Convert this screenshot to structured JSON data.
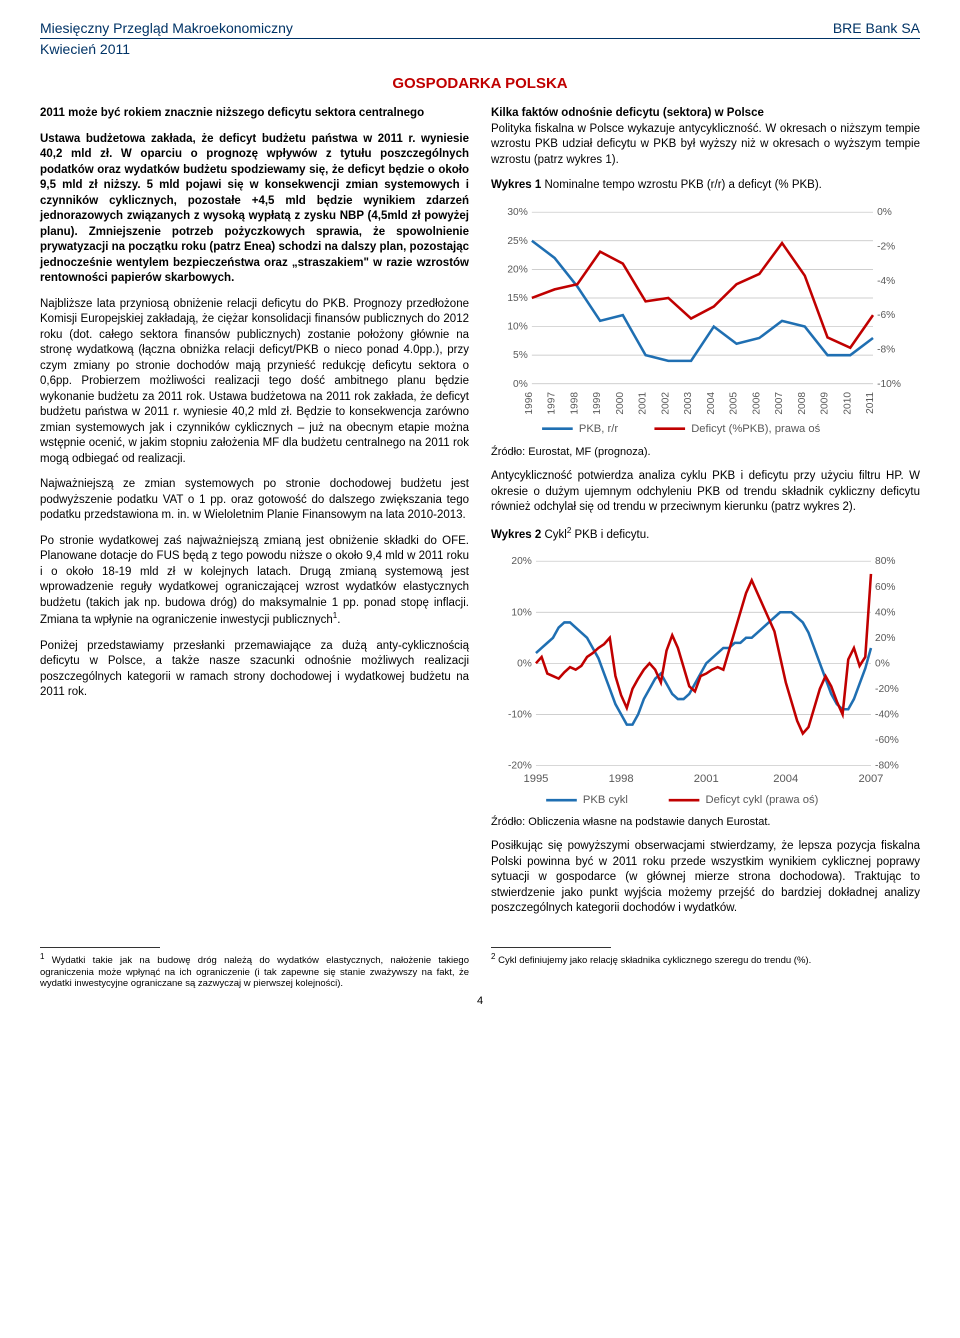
{
  "header": {
    "left": "Miesięczny Przegląd Makroekonomiczny",
    "right": "BRE Bank SA",
    "sub": "Kwiecień 2011"
  },
  "section_title": "GOSPODARKA POLSKA",
  "left_col": {
    "title_line": "2011 może być rokiem znacznie niższego deficytu sektora centralnego",
    "p1": "Ustawa budżetowa zakłada, że deficyt budżetu państwa w 2011 r. wyniesie 40,2 mld zł. W oparciu o prognozę wpływów z tytułu poszczególnych podatków oraz wydatków budżetu spodziewamy się, że deficyt będzie o około 9,5 mld zł niższy. 5 mld pojawi się w konsekwencji zmian systemowych i czynników cyklicznych, pozostałe +4,5 mld będzie wynikiem zdarzeń jednorazowych związanych z wysoką wypłatą z zysku NBP (4,5mld zł powyżej planu). Zmniejszenie potrzeb pożyczkowych sprawia, że spowolnienie prywatyzacji na początku roku (patrz Enea) schodzi na dalszy plan, pozostając jednocześnie wentylem bezpieczeństwa oraz „straszakiem\" w razie wzrostów rentowności papierów skarbowych.",
    "p2": "Najbliższe lata przyniosą obniżenie relacji deficytu do PKB. Prognozy przedłożone Komisji Europejskiej zakładają, że ciężar konsolidacji finansów publicznych do 2012 roku (dot. całego sektora finansów publicznych) zostanie położony głównie na stronę wydatkową (łączna obniżka relacji deficyt/PKB o nieco ponad 4.0pp.), przy czym zmiany po stronie dochodów mają przynieść redukcję deficytu sektora o 0,6pp. Probierzem możliwości realizacji tego dość ambitnego planu będzie wykonanie budżetu za 2011 rok. Ustawa budżetowa na 2011 rok zakłada, że deficyt budżetu państwa w 2011 r. wyniesie 40,2 mld zł. Będzie to konsekwencja zarówno zmian systemowych jak i czynników cyklicznych – już na obecnym etapie można wstępnie ocenić, w jakim stopniu założenia MF dla budżetu centralnego na 2011 rok mogą odbiegać od realizacji.",
    "p3": "Najważniejszą ze zmian systemowych po stronie dochodowej budżetu jest podwyższenie podatku VAT o 1 pp. oraz gotowość do dalszego zwiększania tego podatku przedstawiona m. in. w Wieloletnim Planie Finansowym na lata 2010-2013.",
    "p4": "Po stronie wydatkowej zaś najważniejszą zmianą jest obniżenie składki do OFE. Planowane dotacje do FUS będą z tego powodu niższe o około 9,4 mld w 2011 roku i o około 18-19 mld zł w kolejnych latach. Drugą zmianą systemową jest wprowadzenie reguły wydatkowej ograniczającej wzrost wydatków elastycznych budżetu (takich jak np. budowa dróg) do maksymalnie 1 pp. ponad stopę inflacji. Zmiana ta wpłynie na ograniczenie inwestycji publicznych",
    "p4_sup": "1",
    "p4_end": ".",
    "p5": "Poniżej przedstawiamy przesłanki przemawiające za dużą anty-cyklicznością deficytu w Polsce, a także nasze szacunki odnośnie możliwych realizacji poszczególnych kategorii w ramach strony dochodowej i wydatkowej budżetu na 2011 rok."
  },
  "right_col": {
    "p1_head": "Kilka faktów odnośnie deficytu (sektora) w Polsce",
    "p1": "Polityka fiskalna w Polsce wykazuje antycykliczność. W okresach o niższym tempie wzrostu PKB udział deficytu w PKB był wyższy niż w okresach o wyższym tempie wzrostu (patrz wykres 1).",
    "chart1_caption_bold": "Wykres 1",
    "chart1_caption_rest": " Nominalne tempo wzrostu PKB (r/r) a deficyt (% PKB).",
    "chart1_source": "Źródło: Eurostat, MF (prognoza).",
    "p2": "Antycykliczność potwierdza analiza cyklu PKB i deficytu przy użyciu filtru HP. W okresie o dużym ujemnym odchyleniu PKB od trendu składnik cykliczny deficytu również odchylał się od trendu w przeciwnym kierunku (patrz wykres 2).",
    "chart2_caption_bold": "Wykres 2",
    "chart2_caption_rest_a": " Cykl",
    "chart2_caption_sup": "2",
    "chart2_caption_rest_b": " PKB i deficytu.",
    "chart2_source": "Źródło: Obliczenia własne na podstawie danych Eurostat.",
    "p3": "Posiłkując się powyższymi obserwacjami stwierdzamy, że lepsza pozycja fiskalna Polski powinna być w 2011 roku przede wszystkim wynikiem cyklicznej poprawy sytuacji w gospodarce (w głównej mierze strona dochodowa). Traktując to stwierdzenie jako punkt wyjścia możemy przejść do bardziej dokładnej analizy poszczególnych kategorii dochodów i wydatków."
  },
  "footnotes": {
    "fn1_num": "1",
    "fn1": " Wydatki takie jak na budowę dróg należą do wydatków elastycznych, nałożenie takiego ograniczenia może wpłynąć na ich ograniczenie (i tak zapewne się stanie zważywszy na fakt, że wydatki inwestycyjne ograniczane są zazwyczaj w pierwszej kolejności).",
    "fn2_num": "2",
    "fn2": " Cykl definiujemy jako relację składnika cyklicznego szeregu do trendu (%)."
  },
  "page_number": "4",
  "chart1": {
    "type": "dual-axis-line",
    "x_labels": [
      "1996",
      "1997",
      "1998",
      "1999",
      "2000",
      "2001",
      "2002",
      "2003",
      "2004",
      "2005",
      "2006",
      "2007",
      "2008",
      "2009",
      "2010",
      "2011"
    ],
    "left_axis": {
      "min": 0,
      "max": 30,
      "step": 5,
      "label_suffix": "%"
    },
    "right_axis": {
      "min": -10,
      "max": 0,
      "step": 2,
      "label_suffix": "%"
    },
    "series": [
      {
        "name": "PKB, r/r",
        "color": "#1f6fb2",
        "axis": "left",
        "values": [
          25,
          22,
          17,
          11,
          12,
          5,
          4,
          4,
          10,
          7,
          8,
          11,
          10,
          5,
          5,
          8
        ]
      },
      {
        "name": "Deficyt (%PKB), prawa oś",
        "color": "#c00000",
        "axis": "right",
        "values": [
          -5,
          -4.5,
          -4.2,
          -2.3,
          -3,
          -5.2,
          -5,
          -6.2,
          -5.5,
          -4.2,
          -3.6,
          -1.8,
          -3.7,
          -7.3,
          -7.9,
          -6
        ]
      }
    ],
    "background": "#ffffff",
    "grid_color": "#bfbfbf",
    "font_size": 10,
    "line_width": 2.5
  },
  "chart2": {
    "type": "dual-axis-line",
    "x_labels": [
      "1995",
      "1998",
      "2001",
      "2004",
      "2007"
    ],
    "left_axis": {
      "min": -20,
      "max": 20,
      "step": 10,
      "label_suffix": "%"
    },
    "right_axis": {
      "min": -80,
      "max": 80,
      "step": 20,
      "label_suffix": "%"
    },
    "series": [
      {
        "name": "PKB cykl",
        "color": "#1f6fb2",
        "axis": "left",
        "values_quarterly": [
          2,
          3,
          4,
          5,
          7,
          8,
          8,
          7,
          6,
          5,
          3,
          1,
          -2,
          -5,
          -8,
          -10,
          -12,
          -12,
          -10,
          -7,
          -5,
          -3,
          -2,
          -4,
          -6,
          -7,
          -7,
          -6,
          -4,
          -2,
          0,
          1,
          2,
          3,
          3,
          4,
          4,
          5,
          5,
          6,
          7,
          8,
          9,
          10,
          10,
          10,
          9,
          8,
          6,
          3,
          0,
          -3,
          -6,
          -8,
          -9,
          -9,
          -7,
          -4,
          -1,
          3
        ]
      },
      {
        "name": "Deficyt cykl (prawa oś)",
        "color": "#c00000",
        "axis": "right",
        "values_quarterly": [
          0,
          5,
          -8,
          -10,
          -12,
          -7,
          -3,
          -5,
          -2,
          5,
          8,
          12,
          15,
          20,
          -10,
          -25,
          -35,
          -20,
          -12,
          -5,
          0,
          -5,
          -15,
          10,
          22,
          12,
          -3,
          -18,
          -22,
          -10,
          -8,
          -5,
          -3,
          -5,
          10,
          25,
          40,
          55,
          65,
          55,
          45,
          35,
          25,
          5,
          -15,
          -30,
          -45,
          -55,
          -50,
          -35,
          -20,
          -10,
          -18,
          -30,
          -40,
          3,
          12,
          -2,
          5,
          70
        ]
      }
    ],
    "background": "#ffffff",
    "grid_color": "#bfbfbf",
    "font_size": 10,
    "line_width": 2.5
  }
}
